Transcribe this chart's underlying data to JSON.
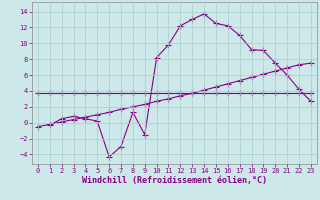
{
  "xlabel": "Windchill (Refroidissement éolien,°C)",
  "bg_color": "#cce8e8",
  "line_color": "#880088",
  "xlim": [
    -0.5,
    23.5
  ],
  "ylim": [
    -5.2,
    15.2
  ],
  "yticks": [
    -4,
    -2,
    0,
    2,
    4,
    6,
    8,
    10,
    12,
    14
  ],
  "xticks": [
    0,
    1,
    2,
    3,
    4,
    5,
    6,
    7,
    8,
    9,
    10,
    11,
    12,
    13,
    14,
    15,
    16,
    17,
    18,
    19,
    20,
    21,
    22,
    23
  ],
  "series1_x": [
    0,
    1,
    2,
    3,
    4,
    5,
    6,
    7,
    8,
    9,
    10,
    11,
    12,
    13,
    14,
    15,
    16,
    17,
    18,
    19,
    20,
    21,
    22,
    23
  ],
  "series1_y": [
    3.8,
    3.8,
    3.8,
    3.8,
    3.8,
    3.8,
    3.8,
    3.8,
    3.8,
    3.8,
    3.8,
    3.8,
    3.8,
    3.8,
    3.8,
    3.8,
    3.8,
    3.8,
    3.8,
    3.8,
    3.8,
    3.8,
    3.8,
    3.8
  ],
  "series2_x": [
    0,
    1,
    2,
    3,
    4,
    5,
    6,
    7,
    8,
    9,
    10,
    11,
    12,
    13,
    14,
    15,
    16,
    17,
    18,
    19,
    20,
    21,
    22,
    23
  ],
  "series2_y": [
    -0.5,
    -0.2,
    0.1,
    0.4,
    0.7,
    1.0,
    1.3,
    1.7,
    2.0,
    2.3,
    2.7,
    3.0,
    3.4,
    3.7,
    4.1,
    4.5,
    4.9,
    5.3,
    5.7,
    6.1,
    6.5,
    6.9,
    7.3,
    7.5
  ],
  "series3_x": [
    1,
    2,
    3,
    4,
    5,
    6,
    7,
    8,
    9,
    10,
    11,
    12,
    13,
    14,
    15,
    16,
    17,
    18,
    19,
    20,
    21,
    22,
    23
  ],
  "series3_y": [
    -0.3,
    0.5,
    0.8,
    0.5,
    0.2,
    -4.3,
    -3.0,
    1.3,
    -1.5,
    8.2,
    9.8,
    12.2,
    13.0,
    13.7,
    12.5,
    12.2,
    11.0,
    9.2,
    9.1,
    7.5,
    6.0,
    4.2,
    2.7
  ],
  "marker": "+",
  "markersize": 4,
  "linewidth": 0.8,
  "tick_fontsize": 5,
  "label_fontsize": 6,
  "grid_color": "#aacccc"
}
